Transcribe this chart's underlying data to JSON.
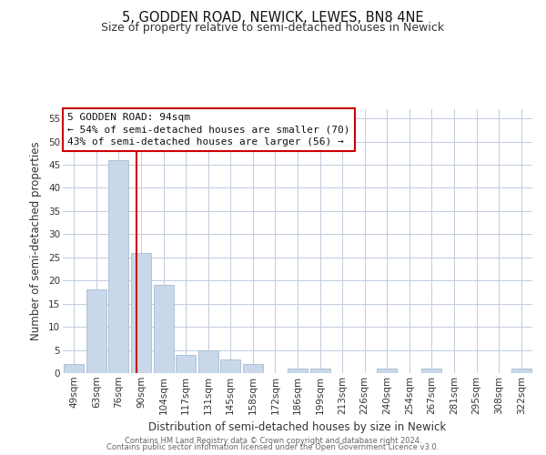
{
  "title": "5, GODDEN ROAD, NEWICK, LEWES, BN8 4NE",
  "subtitle": "Size of property relative to semi-detached houses in Newick",
  "xlabel": "Distribution of semi-detached houses by size in Newick",
  "ylabel": "Number of semi-detached properties",
  "bin_labels": [
    "49sqm",
    "63sqm",
    "76sqm",
    "90sqm",
    "104sqm",
    "117sqm",
    "131sqm",
    "145sqm",
    "158sqm",
    "172sqm",
    "186sqm",
    "199sqm",
    "213sqm",
    "226sqm",
    "240sqm",
    "254sqm",
    "267sqm",
    "281sqm",
    "295sqm",
    "308sqm",
    "322sqm"
  ],
  "bar_values": [
    2,
    18,
    46,
    26,
    19,
    4,
    5,
    3,
    2,
    0,
    1,
    1,
    0,
    0,
    1,
    0,
    1,
    0,
    0,
    0,
    1
  ],
  "bar_color": "#c8d8ea",
  "bar_edgecolor": "#a8bcd0",
  "vline_color": "#cc0000",
  "vline_pos": 2.78,
  "ylim": [
    0,
    57
  ],
  "yticks": [
    0,
    5,
    10,
    15,
    20,
    25,
    30,
    35,
    40,
    45,
    50,
    55
  ],
  "annotation_title": "5 GODDEN ROAD: 94sqm",
  "annotation_line1": "← 54% of semi-detached houses are smaller (70)",
  "annotation_line2": "43% of semi-detached houses are larger (56) →",
  "annotation_box_color": "#ffffff",
  "annotation_box_edgecolor": "#cc0000",
  "footer_line1": "Contains HM Land Registry data © Crown copyright and database right 2024.",
  "footer_line2": "Contains public sector information licensed under the Open Government Licence v3.0.",
  "bg_color": "#ffffff",
  "grid_color": "#c0ccdd",
  "title_fontsize": 10.5,
  "subtitle_fontsize": 9,
  "axis_label_fontsize": 8.5,
  "tick_fontsize": 7.5,
  "annotation_fontsize": 8,
  "footer_fontsize": 6
}
